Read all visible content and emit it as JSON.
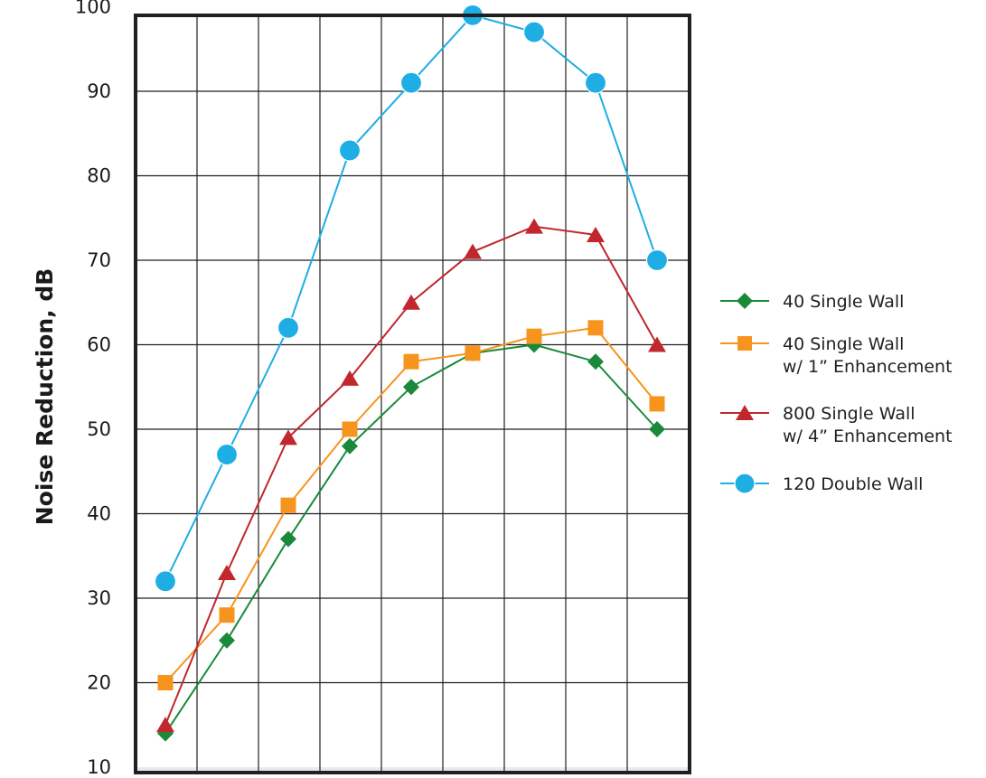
{
  "chart_data": {
    "type": "line",
    "title": "",
    "xlabel": "",
    "ylabel": "Noise Reduction, dB",
    "ylim": [
      10,
      100
    ],
    "yticks": [
      10,
      20,
      30,
      40,
      50,
      60,
      70,
      80,
      90,
      100
    ],
    "grid": true,
    "legend_position": "right",
    "x": [
      1,
      2,
      3,
      4,
      5,
      6,
      7,
      8,
      9
    ],
    "series": [
      {
        "name": "40 Single Wall",
        "color": "#1a8a3a",
        "marker": "diamond",
        "values": [
          14,
          25,
          37,
          48,
          55,
          59,
          60,
          58,
          50
        ]
      },
      {
        "name": "40 Single Wall w/ 1” Enhancement",
        "legend_lines": [
          "40 Single Wall",
          "w/ 1” Enhancement"
        ],
        "color": "#f7941d",
        "marker": "square",
        "values": [
          20,
          28,
          41,
          50,
          58,
          59,
          61,
          62,
          53
        ]
      },
      {
        "name": "800 Single Wall w/ 4” Enhancement",
        "legend_lines": [
          "800 Single Wall",
          "w/ 4” Enhancement"
        ],
        "color": "#c1272d",
        "marker": "triangle",
        "values": [
          15,
          33,
          49,
          56,
          65,
          71,
          74,
          73,
          60
        ]
      },
      {
        "name": "120 Double Wall",
        "color": "#1eaee4",
        "marker": "circle",
        "values": [
          32,
          47,
          62,
          83,
          91,
          99,
          97,
          91,
          70
        ]
      }
    ]
  }
}
